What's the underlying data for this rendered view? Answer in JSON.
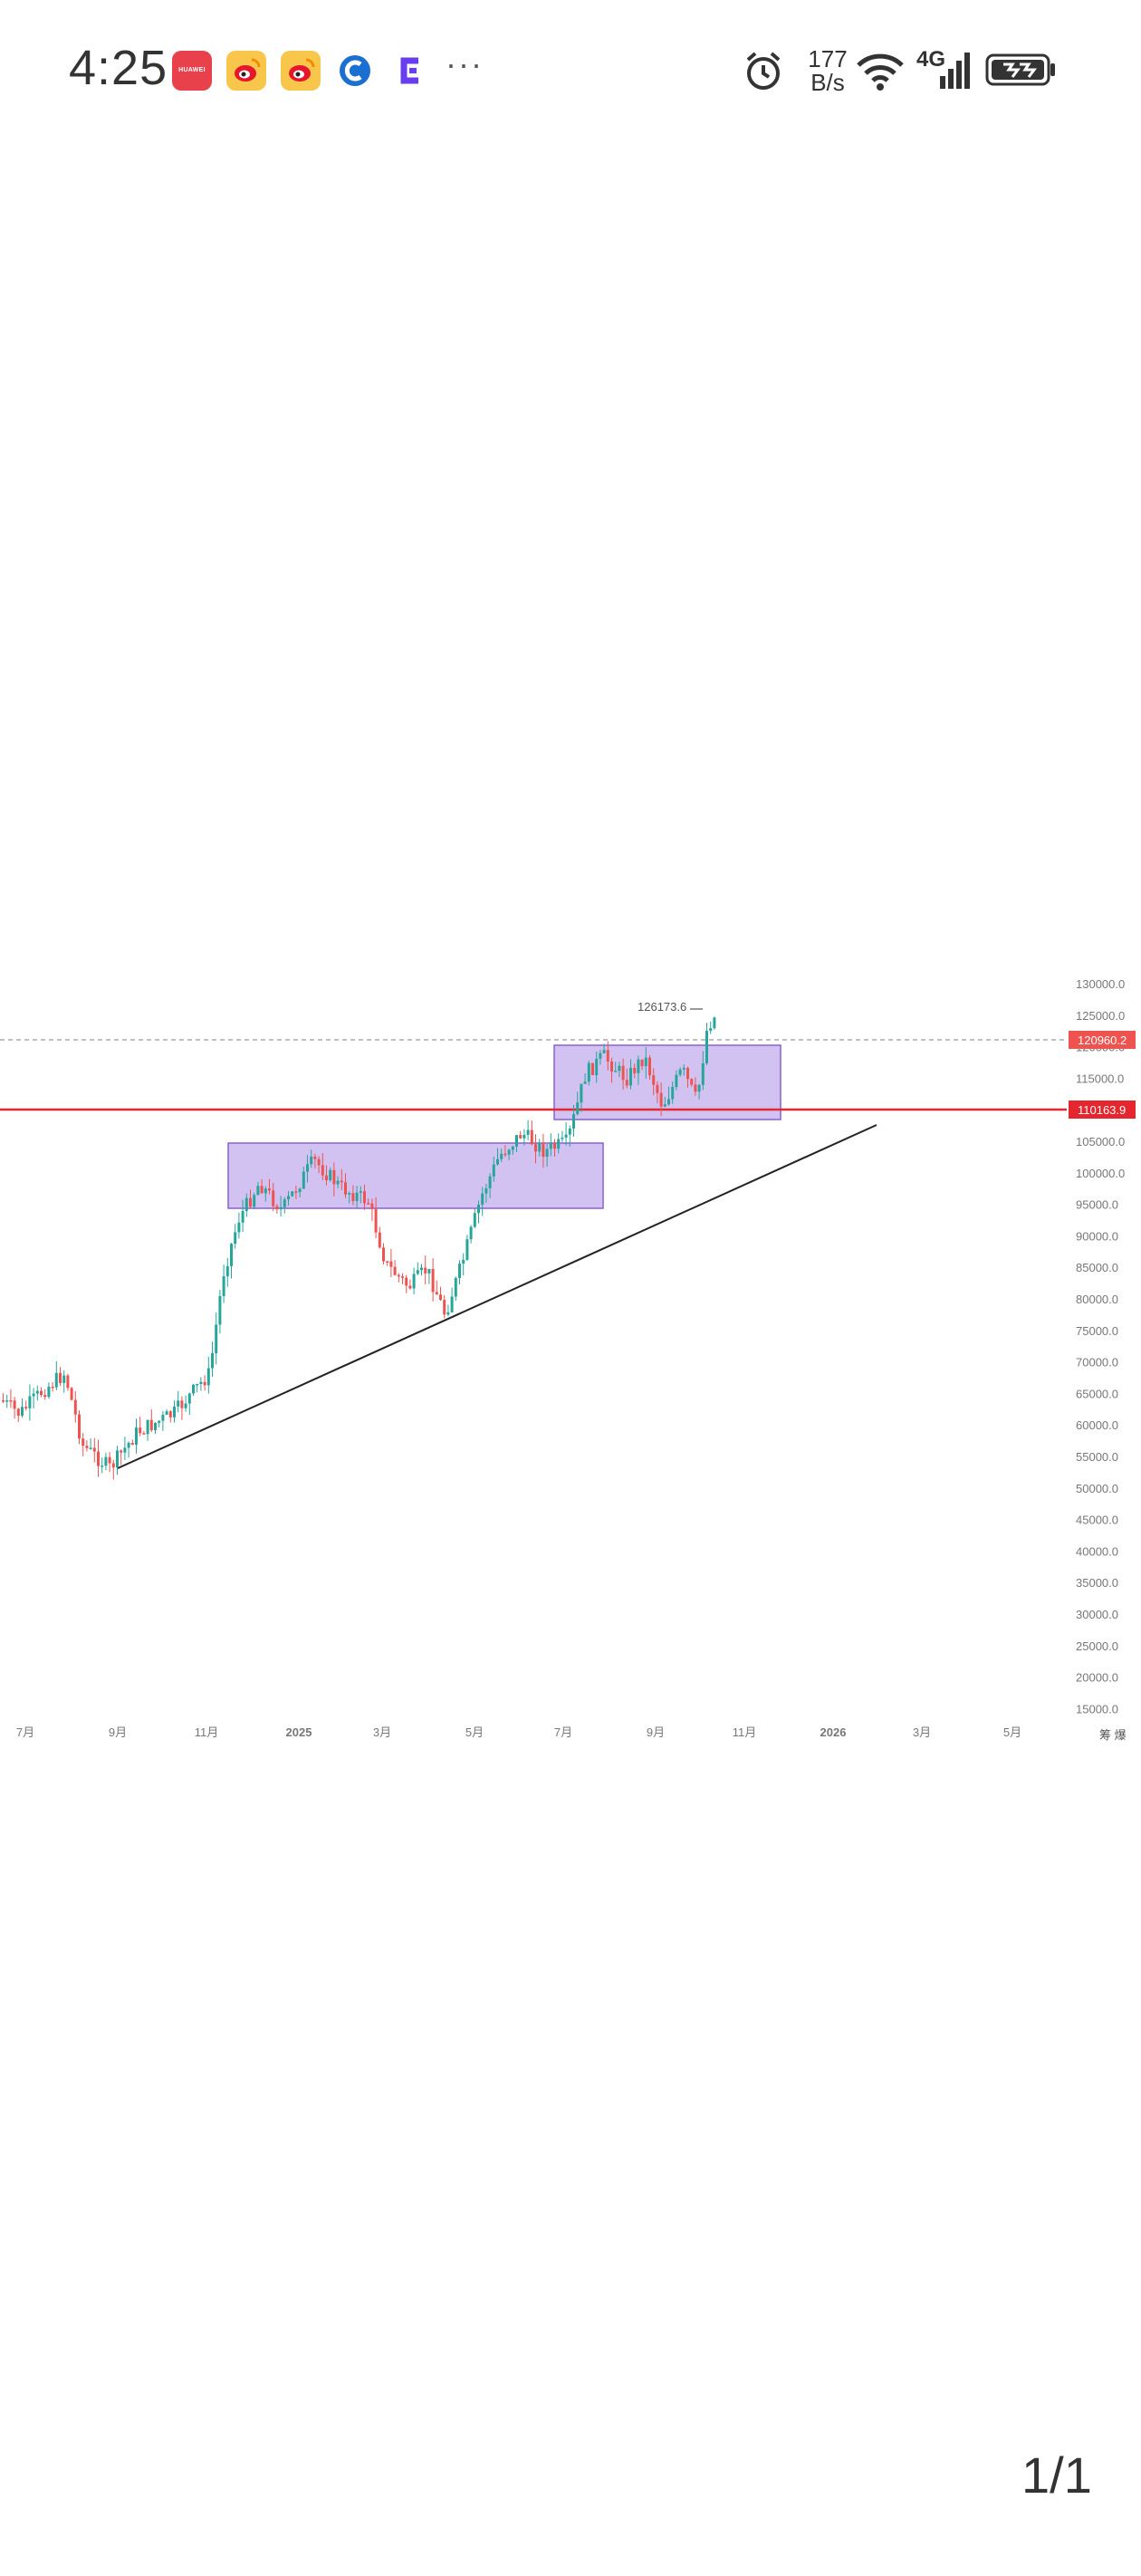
{
  "status_bar": {
    "time": "4:25",
    "network_speed_value": "177",
    "network_speed_unit": "B/s",
    "network_type": "4G",
    "apps": [
      "huawei-appgallery",
      "weibo",
      "weibo",
      "ctrip",
      "c-app"
    ],
    "huawei_label": "HUAWEI",
    "more": "···"
  },
  "chart_data": {
    "type": "candlestick",
    "y_ticks": [
      "130000.0",
      "125000.0",
      "120000.0",
      "115000.0",
      "110000.0",
      "105000.0",
      "100000.0",
      "95000.0",
      "90000.0",
      "85000.0",
      "80000.0",
      "75000.0",
      "70000.0",
      "65000.0",
      "60000.0",
      "55000.0",
      "50000.0",
      "45000.0",
      "40000.0",
      "35000.0",
      "30000.0",
      "25000.0",
      "20000.0",
      "15000.0"
    ],
    "ylim": [
      15000,
      130000
    ],
    "x_ticks": [
      "7月",
      "9月",
      "11月",
      "2025",
      "3月",
      "5月",
      "7月",
      "9月",
      "11月",
      "2026",
      "3月",
      "5月"
    ],
    "axis_corner_label": "筹 爆",
    "peak_label": "126173.6",
    "current_price": "120960.2",
    "horizontal_level": "110163.9",
    "current_price_color": "#ef5350",
    "level_color": "#e5262f",
    "zone_color": "#d2c2f2",
    "up_color": "#26a69a",
    "down_color": "#ef5350"
  },
  "viewer": {
    "page_indicator": "1/1"
  }
}
